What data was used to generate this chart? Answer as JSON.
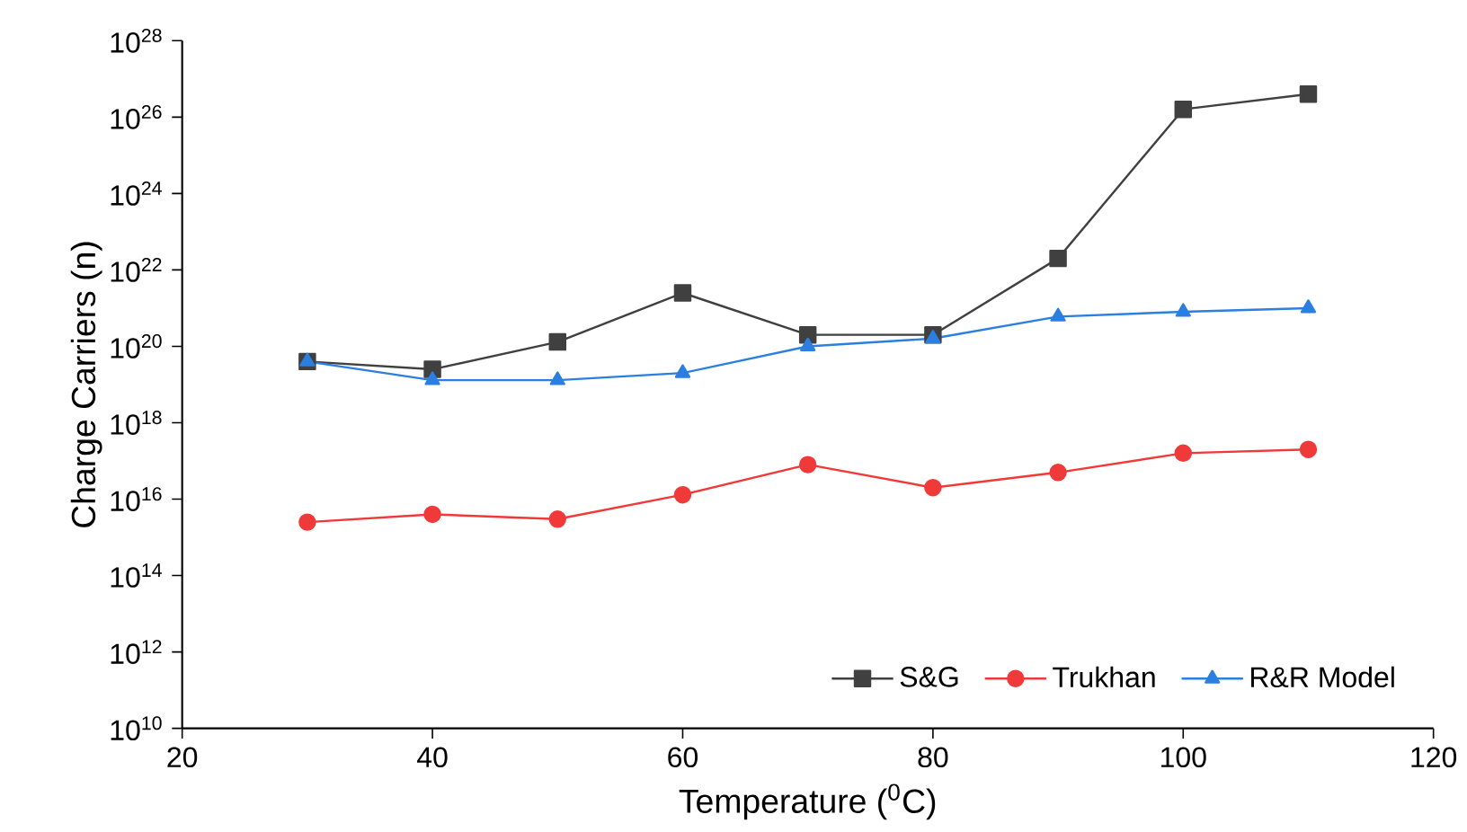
{
  "chart_data": {
    "type": "line",
    "xlabel": "Temperature ($^{0}$C)",
    "ylabel": "Charge Carriers (n)",
    "x": [
      30,
      40,
      50,
      60,
      70,
      80,
      90,
      100,
      110
    ],
    "series": [
      {
        "name": "S&G",
        "color": "#404040",
        "marker": "square",
        "values": [
          4e+19,
          2.5e+19,
          1.3e+20,
          2.5e+21,
          2e+20,
          2e+20,
          2e+22,
          1.6e+26,
          4e+26
        ]
      },
      {
        "name": "Trukhan",
        "color": "#f03a3a",
        "marker": "circle",
        "values": [
          2500000000000000.0,
          4000000000000000.0,
          3000000000000000.0,
          1.3e+16,
          8e+16,
          2e+16,
          5e+16,
          1.6e+17,
          2e+17
        ]
      },
      {
        "name": "R&R Model",
        "color": "#2b7fe0",
        "marker": "triangle",
        "values": [
          4e+19,
          1.3e+19,
          1.3e+19,
          2e+19,
          1e+20,
          1.6e+20,
          6e+20,
          8e+20,
          1e+21
        ]
      }
    ],
    "log": "y",
    "xlim": [
      20,
      120
    ],
    "xticks": [
      20,
      40,
      60,
      80,
      100,
      120
    ],
    "ylim": [
      10000000000.0,
      1e+28
    ],
    "yticks": [
      {
        "value": 10000000000.0,
        "label": "10$^{10}$"
      },
      {
        "value": 1000000000000.0,
        "label": "10$^{12}$"
      },
      {
        "value": 100000000000000.0,
        "label": "10$^{14}$"
      },
      {
        "value": 1e+16,
        "label": "10$^{16}$"
      },
      {
        "value": 1e+18,
        "label": "10$^{18}$"
      },
      {
        "value": 1e+20,
        "label": "10$^{20}$"
      },
      {
        "value": 1e+22,
        "label": "10$^{22}$"
      },
      {
        "value": 1e+24,
        "label": "10$^{24}$"
      },
      {
        "value": 1e+26,
        "label": "10$^{26}$"
      },
      {
        "value": 1e+28,
        "label": "10$^{28}$"
      }
    ],
    "grid": false,
    "legend": "bottom right",
    "line_style": "solid"
  }
}
